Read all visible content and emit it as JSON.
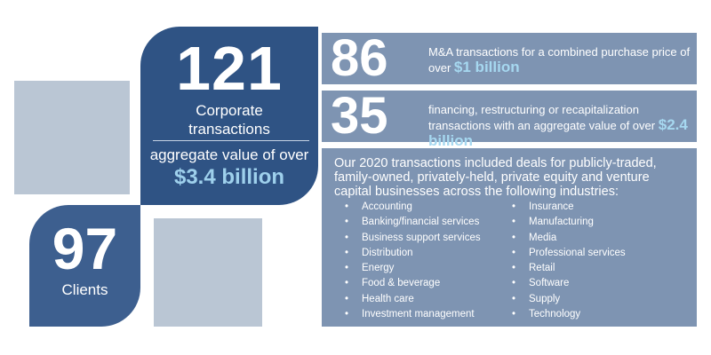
{
  "corporate": {
    "number": "121",
    "label_line1": "Corporate",
    "label_line2": "transactions",
    "aggregate_label": "aggregate value of over",
    "aggregate_amount": "$3.4 billion"
  },
  "clients": {
    "number": "97",
    "label": "Clients"
  },
  "mna": {
    "number": "86",
    "text": "M&A transactions for a combined purchase price of over",
    "amount": "$1 billion"
  },
  "financing": {
    "number": "35",
    "text": "financing, restructuring or recapitalization transactions with an aggregate value of over",
    "amount": "$2.4 billion"
  },
  "industries": {
    "intro": "Our 2020 transactions included deals for publicly-traded, family-owned, privately-held, private equity and venture capital businesses across the following industries:",
    "column_a": [
      "Accounting",
      "Banking/financial services",
      "Business support services",
      "Distribution",
      "Energy",
      "Food & beverage",
      "Health care",
      "Investment management"
    ],
    "column_b": [
      "Insurance",
      "Manufacturing",
      "Media",
      "Professional services",
      "Retail",
      "Software",
      "Supply",
      "Technology"
    ]
  },
  "colors": {
    "dark_navy": "#2f5384",
    "mid_navy": "#3d5f8f",
    "steel_blue": "#7e94b2",
    "light_square": "#bac6d4",
    "accent_blue": "#9ed0ec"
  }
}
